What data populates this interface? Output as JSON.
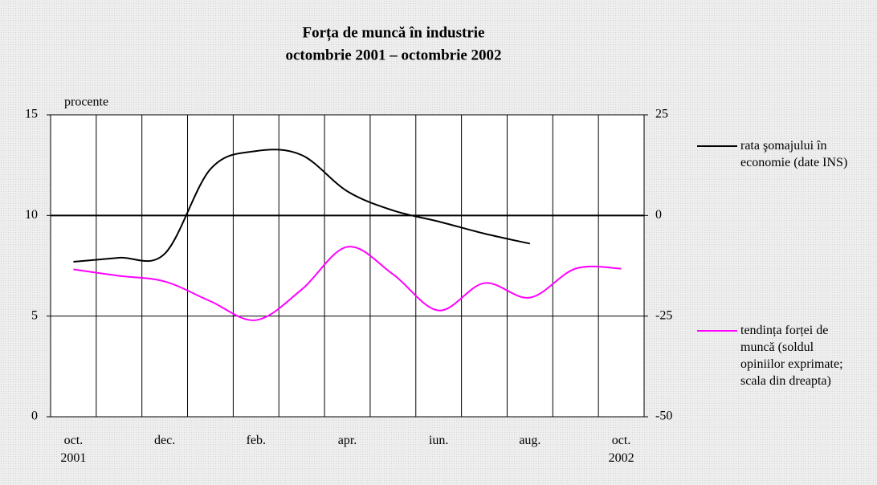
{
  "chart_data": {
    "type": "line",
    "title": "Forța de muncă în industrie",
    "subtitle": "octombrie 2001 – octombrie 2002",
    "ylabel": "procente",
    "categories": [
      "oct.\n2001",
      null,
      "dec.",
      null,
      "feb.",
      null,
      "apr.",
      null,
      "iun.",
      null,
      "aug.",
      null,
      "oct.\n2002"
    ],
    "series": [
      {
        "name": "rata şomajului în economie (date INS)",
        "color": "#000000",
        "axis": "y",
        "values": [
          7.7,
          7.9,
          8.1,
          12.3,
          13.2,
          13.0,
          11.2,
          10.25,
          9.7,
          9.1,
          8.6,
          null,
          null
        ]
      },
      {
        "name": "tendința forței de muncă (soldul opiniilor exprimate; scala din dreapta)",
        "color": "#ff00ff",
        "axis": "y2",
        "values": [
          -13.4,
          -15,
          -16.4,
          -21.3,
          -26,
          -18.4,
          -7.8,
          -14.6,
          -23.6,
          -16.8,
          -20.4,
          -13.2,
          -13.2
        ]
      }
    ],
    "ylim": [
      0,
      15
    ],
    "yticks": [
      0,
      5,
      10,
      15
    ],
    "y2lim": [
      -50,
      25
    ],
    "y2ticks": [
      -50,
      -25,
      0,
      25
    ],
    "grid": true
  }
}
